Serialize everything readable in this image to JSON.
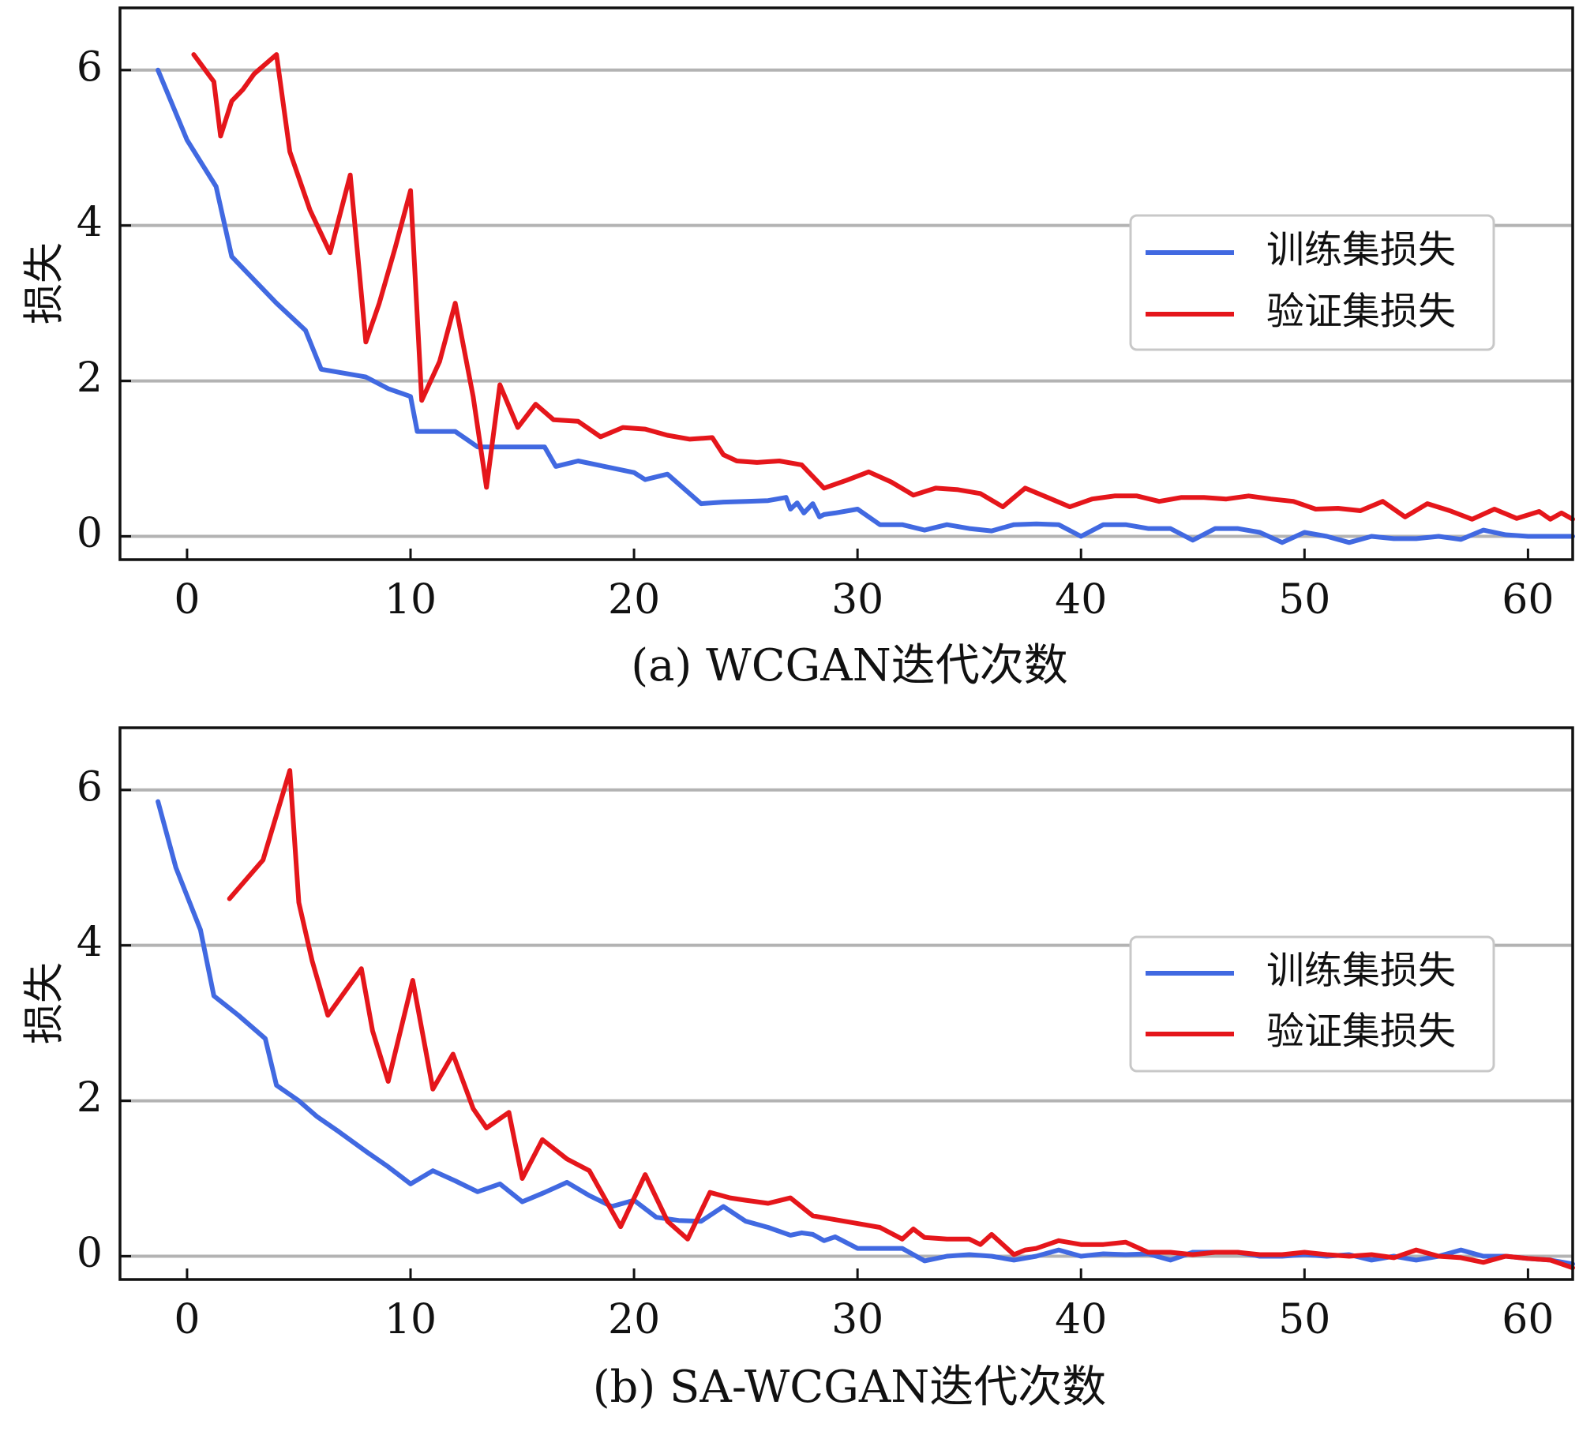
{
  "chart_data": [
    {
      "type": "line",
      "caption": "(a)  WCGAN迭代次数",
      "xlabel": "",
      "ylabel": "损失",
      "xlim": [
        -3,
        62
      ],
      "ylim": [
        -0.3,
        6.8
      ],
      "xticks": [
        0,
        10,
        20,
        30,
        40,
        50,
        60
      ],
      "yticks": [
        0,
        2,
        4,
        6
      ],
      "grid": "horizontal",
      "legend_position": "center-right",
      "series": [
        {
          "name": "训练集损失",
          "color": "#4169e1",
          "x": [
            -1.3,
            0,
            1.3,
            2,
            3,
            4,
            5.3,
            6,
            7,
            8,
            9,
            10,
            10.3,
            12,
            12.5,
            13,
            14,
            16,
            16.5,
            17.5,
            19,
            20,
            20.5,
            21.5,
            23,
            24,
            25,
            26,
            26.8,
            27,
            27.3,
            27.6,
            28,
            28.3,
            28.5,
            29,
            30,
            31,
            32,
            33,
            34,
            35,
            36,
            37,
            38,
            39,
            40,
            41,
            42,
            43,
            44,
            45,
            46,
            47,
            48,
            49,
            50,
            51,
            52,
            53,
            54,
            55,
            56,
            57,
            58,
            59,
            60,
            61,
            62
          ],
          "values": [
            6.0,
            5.1,
            4.5,
            3.6,
            3.3,
            3.0,
            2.65,
            2.15,
            2.1,
            2.05,
            1.9,
            1.8,
            1.35,
            1.35,
            1.25,
            1.15,
            1.15,
            1.15,
            0.9,
            0.97,
            0.88,
            0.82,
            0.73,
            0.8,
            0.42,
            0.44,
            0.45,
            0.46,
            0.5,
            0.35,
            0.43,
            0.3,
            0.42,
            0.25,
            0.28,
            0.3,
            0.35,
            0.15,
            0.15,
            0.08,
            0.15,
            0.1,
            0.07,
            0.15,
            0.16,
            0.15,
            0.0,
            0.15,
            0.15,
            0.1,
            0.1,
            -0.05,
            0.1,
            0.1,
            0.05,
            -0.08,
            0.05,
            0.0,
            -0.08,
            0.0,
            -0.03,
            -0.03,
            0.0,
            -0.04,
            0.08,
            0.02,
            0.0,
            0.0,
            0.0
          ]
        },
        {
          "name": "验证集损失",
          "color": "#e5161b",
          "x": [
            0.3,
            1.2,
            1.5,
            2,
            2.5,
            3,
            4,
            4.6,
            5.5,
            6.4,
            7.3,
            8,
            8.6,
            9.3,
            10,
            10.5,
            11.3,
            12,
            12.8,
            13.4,
            14,
            14.8,
            15.6,
            16.4,
            17.5,
            18.5,
            19.5,
            20.5,
            21.5,
            22.5,
            23.5,
            24,
            24.6,
            25.5,
            26.5,
            27.5,
            28.5,
            29.5,
            30.5,
            31.5,
            32.5,
            33.5,
            34.5,
            35.5,
            36.5,
            37.5,
            38.5,
            39.5,
            40.5,
            41.5,
            42.5,
            43.5,
            44.5,
            45.5,
            46.5,
            47.5,
            48.5,
            49.5,
            50.5,
            51.5,
            52.5,
            53.5,
            54.5,
            55.5,
            56.5,
            57.5,
            58.5,
            59.5,
            60.5,
            61,
            61.5,
            62
          ],
          "values": [
            6.2,
            5.85,
            5.15,
            5.6,
            5.75,
            5.95,
            6.2,
            4.95,
            4.2,
            3.65,
            4.65,
            2.5,
            3.0,
            3.7,
            4.45,
            1.75,
            2.25,
            3.0,
            1.8,
            0.63,
            1.95,
            1.4,
            1.7,
            1.5,
            1.48,
            1.28,
            1.4,
            1.38,
            1.3,
            1.25,
            1.27,
            1.05,
            0.97,
            0.95,
            0.97,
            0.92,
            0.62,
            0.72,
            0.83,
            0.7,
            0.53,
            0.62,
            0.6,
            0.55,
            0.38,
            0.62,
            0.5,
            0.38,
            0.48,
            0.52,
            0.52,
            0.45,
            0.5,
            0.5,
            0.48,
            0.52,
            0.48,
            0.45,
            0.35,
            0.36,
            0.33,
            0.45,
            0.25,
            0.42,
            0.33,
            0.22,
            0.35,
            0.23,
            0.32,
            0.22,
            0.3,
            0.22
          ]
        }
      ]
    },
    {
      "type": "line",
      "caption": "(b)  SA-WCGAN迭代次数",
      "xlabel": "",
      "ylabel": "损失",
      "xlim": [
        -3,
        62
      ],
      "ylim": [
        -0.3,
        6.8
      ],
      "xticks": [
        0,
        10,
        20,
        30,
        40,
        50,
        60
      ],
      "yticks": [
        0,
        2,
        4,
        6
      ],
      "grid": "horizontal",
      "legend_position": "center-right",
      "series": [
        {
          "name": "训练集损失",
          "color": "#4169e1",
          "x": [
            -1.3,
            -0.5,
            0.6,
            1.2,
            2.3,
            3.5,
            4,
            5,
            5.8,
            6.8,
            8,
            9,
            10,
            11,
            12,
            13,
            14,
            15,
            16,
            17,
            18,
            19,
            20,
            21,
            22,
            23,
            24,
            25,
            26,
            27,
            27.5,
            28,
            28.5,
            29,
            30,
            31,
            32,
            33,
            34,
            35,
            36,
            37,
            38,
            39,
            40,
            41,
            42,
            43,
            44,
            45,
            46,
            47,
            48,
            49,
            50,
            51,
            52,
            53,
            54,
            55,
            56,
            57,
            58,
            59,
            60,
            61,
            62
          ],
          "values": [
            5.85,
            5.0,
            4.2,
            3.35,
            3.1,
            2.8,
            2.2,
            2.0,
            1.8,
            1.6,
            1.35,
            1.15,
            0.93,
            1.1,
            0.97,
            0.83,
            0.93,
            0.7,
            0.82,
            0.95,
            0.78,
            0.64,
            0.72,
            0.5,
            0.46,
            0.45,
            0.64,
            0.45,
            0.37,
            0.27,
            0.3,
            0.28,
            0.2,
            0.25,
            0.1,
            0.1,
            0.1,
            -0.06,
            0.0,
            0.02,
            0.0,
            -0.05,
            0.0,
            0.08,
            0.0,
            0.03,
            0.02,
            0.03,
            -0.05,
            0.05,
            0.05,
            0.05,
            0.0,
            0.0,
            0.02,
            0.0,
            0.02,
            -0.05,
            0.0,
            -0.05,
            0.0,
            0.08,
            0.0,
            0.0,
            -0.03,
            -0.05,
            -0.1
          ]
        },
        {
          "name": "验证集损失",
          "color": "#e5161b",
          "x": [
            1.9,
            3.4,
            4.6,
            5,
            5.6,
            6.3,
            7.8,
            8.3,
            9,
            10.1,
            11,
            11.9,
            12.8,
            13.4,
            14.4,
            15,
            15.9,
            17,
            18,
            19.4,
            20.5,
            21.5,
            22.4,
            23.4,
            24.3,
            25,
            26,
            27,
            28,
            29,
            30,
            31,
            32,
            32.5,
            33,
            34,
            35,
            35.5,
            36,
            37,
            37.5,
            38,
            39,
            40,
            41,
            42,
            43,
            44,
            45,
            46,
            47,
            48,
            49,
            50,
            51,
            52,
            53,
            54,
            55,
            56,
            57,
            58,
            59,
            60,
            61,
            62
          ],
          "values": [
            4.6,
            5.1,
            6.25,
            4.55,
            3.8,
            3.1,
            3.7,
            2.9,
            2.25,
            3.55,
            2.15,
            2.6,
            1.9,
            1.65,
            1.85,
            1.0,
            1.5,
            1.25,
            1.1,
            0.38,
            1.05,
            0.45,
            0.22,
            0.82,
            0.75,
            0.72,
            0.68,
            0.75,
            0.52,
            0.47,
            0.42,
            0.37,
            0.22,
            0.35,
            0.24,
            0.22,
            0.22,
            0.15,
            0.28,
            0.02,
            0.08,
            0.1,
            0.2,
            0.15,
            0.15,
            0.18,
            0.05,
            0.05,
            0.02,
            0.05,
            0.05,
            0.02,
            0.02,
            0.05,
            0.02,
            0.0,
            0.02,
            -0.02,
            0.08,
            0.0,
            -0.02,
            -0.08,
            0.0,
            -0.03,
            -0.05,
            -0.15
          ]
        }
      ]
    }
  ]
}
